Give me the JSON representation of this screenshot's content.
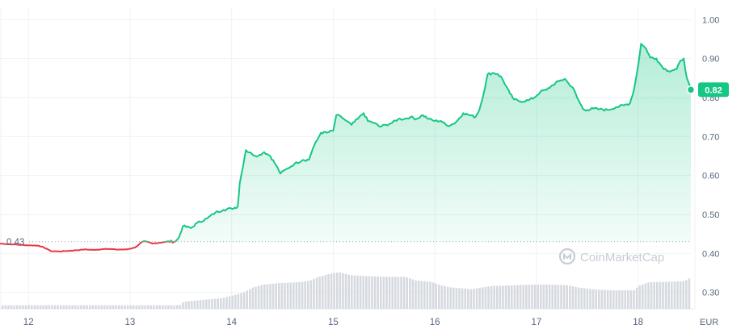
{
  "watermark": "CoinMarketCap",
  "chart_data": {
    "type": "area",
    "currency_label": "EUR",
    "ylim": [
      0.2578,
      1.0317
    ],
    "y_ticks": [
      1.0,
      0.9,
      0.8,
      0.7,
      0.6,
      0.5,
      0.4,
      0.3
    ],
    "y_tick_labels": [
      "1.00",
      "0.90",
      "0.80",
      "0.70",
      "0.60",
      "0.50",
      "0.40",
      "0.30"
    ],
    "x_range": [
      11.72,
      18.52
    ],
    "x_ticks": [
      12,
      13,
      14,
      15,
      16,
      17,
      18
    ],
    "x_tick_labels": [
      "12",
      "13",
      "14",
      "15",
      "16",
      "17",
      "18"
    ],
    "open_price": 0.43,
    "open_price_label": "0.43",
    "current_price": 0.82,
    "current_price_label": "0.82",
    "colors": {
      "up": "#16c784",
      "down": "#ea3943",
      "volume": "#d6dae0",
      "grid": "#eff2f5"
    },
    "series": [
      {
        "values": [
          [
            11.72,
            0.425
          ],
          [
            11.85,
            0.423
          ],
          [
            11.98,
            0.421
          ],
          [
            12.1,
            0.42
          ],
          [
            12.18,
            0.412
          ],
          [
            12.22,
            0.406
          ],
          [
            12.3,
            0.405
          ],
          [
            12.42,
            0.407
          ],
          [
            12.55,
            0.41
          ],
          [
            12.66,
            0.409
          ],
          [
            12.76,
            0.412
          ],
          [
            12.86,
            0.41
          ],
          [
            12.96,
            0.41
          ],
          [
            13.05,
            0.415
          ],
          [
            13.12,
            0.43
          ],
          [
            13.22,
            0.425
          ],
          [
            13.36,
            0.43
          ],
          [
            13.45,
            0.431
          ],
          [
            13.48,
            0.44
          ],
          [
            13.52,
            0.47
          ],
          [
            13.6,
            0.465
          ],
          [
            13.66,
            0.478
          ],
          [
            13.76,
            0.49
          ],
          [
            13.84,
            0.505
          ],
          [
            13.92,
            0.512
          ],
          [
            14.0,
            0.515
          ],
          [
            14.06,
            0.52
          ],
          [
            14.08,
            0.58
          ],
          [
            14.14,
            0.665
          ],
          [
            14.2,
            0.655
          ],
          [
            14.26,
            0.65
          ],
          [
            14.32,
            0.66
          ],
          [
            14.38,
            0.65
          ],
          [
            14.44,
            0.625
          ],
          [
            14.48,
            0.605
          ],
          [
            14.55,
            0.618
          ],
          [
            14.62,
            0.63
          ],
          [
            14.7,
            0.64
          ],
          [
            14.76,
            0.64
          ],
          [
            14.8,
            0.67
          ],
          [
            14.84,
            0.69
          ],
          [
            14.88,
            0.71
          ],
          [
            14.94,
            0.71
          ],
          [
            15.0,
            0.715
          ],
          [
            15.03,
            0.755
          ],
          [
            15.08,
            0.75
          ],
          [
            15.13,
            0.74
          ],
          [
            15.18,
            0.73
          ],
          [
            15.24,
            0.745
          ],
          [
            15.3,
            0.76
          ],
          [
            15.34,
            0.74
          ],
          [
            15.4,
            0.735
          ],
          [
            15.46,
            0.725
          ],
          [
            15.52,
            0.73
          ],
          [
            15.58,
            0.735
          ],
          [
            15.64,
            0.745
          ],
          [
            15.7,
            0.745
          ],
          [
            15.76,
            0.75
          ],
          [
            15.82,
            0.745
          ],
          [
            15.88,
            0.755
          ],
          [
            15.94,
            0.745
          ],
          [
            16.0,
            0.74
          ],
          [
            16.06,
            0.74
          ],
          [
            16.12,
            0.728
          ],
          [
            16.18,
            0.732
          ],
          [
            16.22,
            0.74
          ],
          [
            16.28,
            0.76
          ],
          [
            16.34,
            0.755
          ],
          [
            16.4,
            0.75
          ],
          [
            16.44,
            0.77
          ],
          [
            16.48,
            0.81
          ],
          [
            16.52,
            0.86
          ],
          [
            16.58,
            0.863
          ],
          [
            16.62,
            0.86
          ],
          [
            16.66,
            0.85
          ],
          [
            16.7,
            0.83
          ],
          [
            16.74,
            0.81
          ],
          [
            16.78,
            0.795
          ],
          [
            16.84,
            0.79
          ],
          [
            16.92,
            0.793
          ],
          [
            16.98,
            0.8
          ],
          [
            17.04,
            0.815
          ],
          [
            17.1,
            0.82
          ],
          [
            17.16,
            0.832
          ],
          [
            17.22,
            0.842
          ],
          [
            17.28,
            0.848
          ],
          [
            17.32,
            0.835
          ],
          [
            17.36,
            0.825
          ],
          [
            17.4,
            0.8
          ],
          [
            17.46,
            0.77
          ],
          [
            17.5,
            0.768
          ],
          [
            17.56,
            0.772
          ],
          [
            17.62,
            0.77
          ],
          [
            17.7,
            0.768
          ],
          [
            17.78,
            0.775
          ],
          [
            17.86,
            0.78
          ],
          [
            17.92,
            0.785
          ],
          [
            17.96,
            0.82
          ],
          [
            18.0,
            0.88
          ],
          [
            18.03,
            0.938
          ],
          [
            18.08,
            0.925
          ],
          [
            18.12,
            0.903
          ],
          [
            18.18,
            0.9
          ],
          [
            18.24,
            0.878
          ],
          [
            18.3,
            0.868
          ],
          [
            18.34,
            0.87
          ],
          [
            18.38,
            0.873
          ],
          [
            18.42,
            0.895
          ],
          [
            18.45,
            0.9
          ],
          [
            18.48,
            0.85
          ],
          [
            18.52,
            0.82
          ]
        ],
        "volume": [
          [
            11.72,
            0.01
          ],
          [
            12.0,
            0.01
          ],
          [
            12.4,
            0.01
          ],
          [
            13.0,
            0.01
          ],
          [
            13.48,
            0.01
          ],
          [
            13.52,
            0.02
          ],
          [
            13.7,
            0.025
          ],
          [
            13.9,
            0.03
          ],
          [
            14.1,
            0.045
          ],
          [
            14.2,
            0.06
          ],
          [
            14.3,
            0.068
          ],
          [
            14.45,
            0.072
          ],
          [
            14.6,
            0.074
          ],
          [
            14.75,
            0.078
          ],
          [
            14.85,
            0.09
          ],
          [
            14.95,
            0.098
          ],
          [
            15.05,
            0.103
          ],
          [
            15.15,
            0.095
          ],
          [
            15.3,
            0.092
          ],
          [
            15.5,
            0.09
          ],
          [
            15.7,
            0.09
          ],
          [
            15.8,
            0.08
          ],
          [
            15.95,
            0.076
          ],
          [
            16.05,
            0.066
          ],
          [
            16.15,
            0.06
          ],
          [
            16.25,
            0.058
          ],
          [
            16.35,
            0.055
          ],
          [
            16.45,
            0.06
          ],
          [
            16.55,
            0.064
          ],
          [
            16.75,
            0.066
          ],
          [
            16.95,
            0.068
          ],
          [
            17.15,
            0.068
          ],
          [
            17.3,
            0.066
          ],
          [
            17.4,
            0.06
          ],
          [
            17.55,
            0.055
          ],
          [
            17.7,
            0.052
          ],
          [
            17.85,
            0.052
          ],
          [
            17.95,
            0.052
          ],
          [
            18.0,
            0.065
          ],
          [
            18.1,
            0.075
          ],
          [
            18.3,
            0.076
          ],
          [
            18.45,
            0.078
          ],
          [
            18.52,
            0.09
          ]
        ]
      }
    ]
  }
}
